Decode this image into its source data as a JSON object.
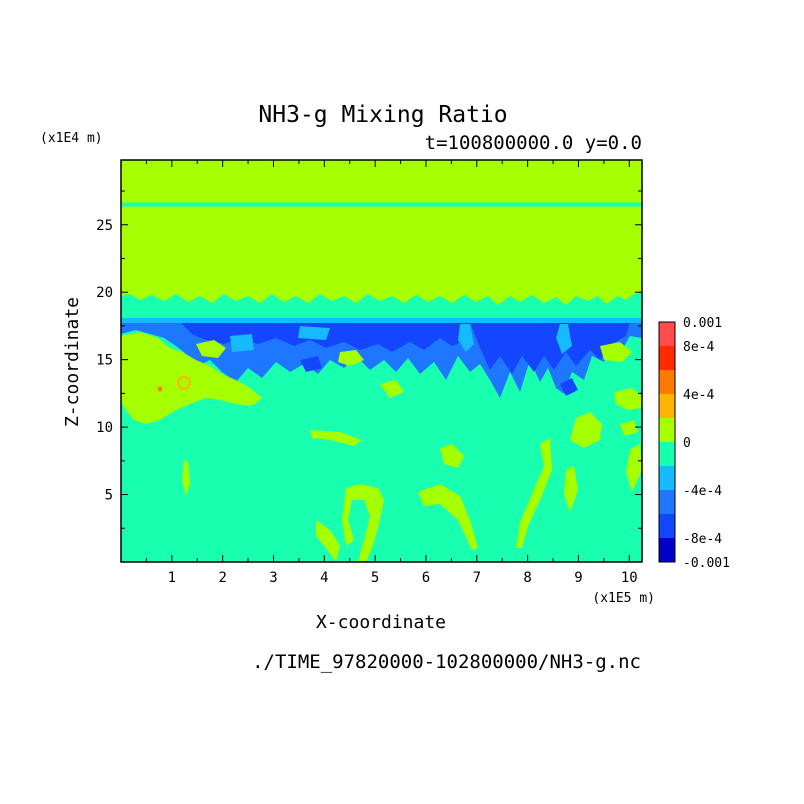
{
  "chart_data": {
    "type": "heatmap",
    "title": "NH3-g Mixing Ratio",
    "subtitle": "t=100800000.0 y=0.0",
    "xlabel": "X-coordinate",
    "ylabel": "Z-coordinate",
    "x_unit": "(x1E5 m)",
    "y_unit": "(x1E4 m)",
    "xlim": [
      0,
      10.25
    ],
    "ylim": [
      0,
      29.8
    ],
    "x_ticks": [
      "1",
      "2",
      "3",
      "4",
      "5",
      "6",
      "7",
      "8",
      "9",
      "10"
    ],
    "y_ticks": [
      "5",
      "10",
      "15",
      "20",
      "25"
    ],
    "colorbar": {
      "ticks": [
        "0.001",
        "8e-4",
        "4e-4",
        "0",
        "-4e-4",
        "-8e-4",
        "-0.001"
      ],
      "levels": [
        {
          "from": 0.0008,
          "to": 0.001,
          "color": "#ff4d4d"
        },
        {
          "from": 0.0006,
          "to": 0.0008,
          "color": "#ff2a00"
        },
        {
          "from": 0.0004,
          "to": 0.0006,
          "color": "#ff7a00"
        },
        {
          "from": 0.0002,
          "to": 0.0004,
          "color": "#ffb400"
        },
        {
          "from": 0,
          "to": 0.0002,
          "color": "#a6ff00"
        },
        {
          "from": -0.0002,
          "to": 0,
          "color": "#19ffb0"
        },
        {
          "from": -0.0004,
          "to": -0.0002,
          "color": "#16bbff"
        },
        {
          "from": -0.0006,
          "to": -0.0004,
          "color": "#1e78ff"
        },
        {
          "from": -0.0008,
          "to": -0.0006,
          "color": "#1446ff"
        },
        {
          "from": -0.001,
          "to": -0.0008,
          "color": "#0000c8"
        }
      ]
    },
    "field": {
      "background": "#19ffb0",
      "upper_layer": {
        "z_from": 19.8,
        "z_to": 29.8,
        "color": "#a6ff00"
      },
      "thin_line_z": 26.5,
      "negative_band": {
        "z_from": 14.5,
        "z_to": 18.3,
        "color": "#1e78ff"
      },
      "band_line_z": 17.9
    },
    "source_file": "./TIME_97820000-102800000/NH3-g.nc"
  }
}
